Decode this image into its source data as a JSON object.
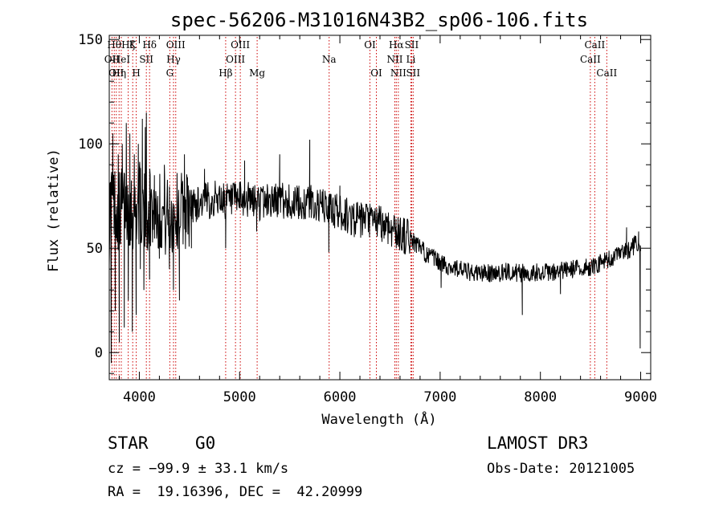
{
  "chart_data": {
    "type": "line",
    "title": "spec-56206-M31016N43B2_sp06-106.fits",
    "xlabel": "Wavelength (Å)",
    "ylabel": "Flux (relative)",
    "xlim": [
      3700,
      9100
    ],
    "ylim": [
      -13,
      152
    ],
    "xticks": [
      4000,
      5000,
      6000,
      7000,
      8000,
      9000
    ],
    "yticks": [
      0,
      50,
      100,
      150
    ],
    "line_color": "#000000",
    "marker_color": "#cc0000",
    "spectrum_anchors": [
      [
        3700,
        62
      ],
      [
        3720,
        75
      ],
      [
        3760,
        70
      ],
      [
        3800,
        68
      ],
      [
        3850,
        72
      ],
      [
        3900,
        70
      ],
      [
        3950,
        68
      ],
      [
        4000,
        72
      ],
      [
        4050,
        66
      ],
      [
        4100,
        70
      ],
      [
        4200,
        68
      ],
      [
        4300,
        64
      ],
      [
        4400,
        68
      ],
      [
        4500,
        70
      ],
      [
        4600,
        72
      ],
      [
        4700,
        73
      ],
      [
        4800,
        74
      ],
      [
        4900,
        72
      ],
      [
        5000,
        73
      ],
      [
        5100,
        73
      ],
      [
        5200,
        72
      ],
      [
        5300,
        73
      ],
      [
        5400,
        73
      ],
      [
        5500,
        72
      ],
      [
        5600,
        71
      ],
      [
        5700,
        72
      ],
      [
        5800,
        70
      ],
      [
        5900,
        69
      ],
      [
        6000,
        67
      ],
      [
        6100,
        65
      ],
      [
        6200,
        63
      ],
      [
        6300,
        63
      ],
      [
        6400,
        62
      ],
      [
        6500,
        60
      ],
      [
        6600,
        57
      ],
      [
        6700,
        55
      ],
      [
        6800,
        50
      ],
      [
        6900,
        46
      ],
      [
        7000,
        43
      ],
      [
        7100,
        41
      ],
      [
        7200,
        40
      ],
      [
        7300,
        38
      ],
      [
        7400,
        38
      ],
      [
        7500,
        38
      ],
      [
        7600,
        38
      ],
      [
        7700,
        39
      ],
      [
        7800,
        38
      ],
      [
        7900,
        38
      ],
      [
        8000,
        39
      ],
      [
        8100,
        38
      ],
      [
        8200,
        39
      ],
      [
        8300,
        40
      ],
      [
        8400,
        40
      ],
      [
        8500,
        41
      ],
      [
        8600,
        43
      ],
      [
        8700,
        45
      ],
      [
        8800,
        47
      ],
      [
        8900,
        50
      ],
      [
        8960,
        52
      ],
      [
        9000,
        48
      ]
    ],
    "spectrum_features": [
      {
        "x": 3720,
        "y": -5
      },
      {
        "x": 3735,
        "y": 105
      },
      {
        "x": 3760,
        "y": 20
      },
      {
        "x": 3790,
        "y": 95
      },
      {
        "x": 3800,
        "y": 5
      },
      {
        "x": 3830,
        "y": 100
      },
      {
        "x": 3850,
        "y": 12
      },
      {
        "x": 3870,
        "y": 110
      },
      {
        "x": 3890,
        "y": 25
      },
      {
        "x": 3905,
        "y": 105
      },
      {
        "x": 3930,
        "y": 10
      },
      {
        "x": 3950,
        "y": 95
      },
      {
        "x": 3968,
        "y": 18
      },
      {
        "x": 3990,
        "y": 100
      },
      {
        "x": 4010,
        "y": 40
      },
      {
        "x": 4030,
        "y": 112
      },
      {
        "x": 4045,
        "y": 30
      },
      {
        "x": 4060,
        "y": 108
      },
      {
        "x": 4070,
        "y": 115
      },
      {
        "x": 4102,
        "y": 35
      },
      {
        "x": 4150,
        "y": 85
      },
      {
        "x": 4200,
        "y": 45
      },
      {
        "x": 4250,
        "y": 90
      },
      {
        "x": 4300,
        "y": 40
      },
      {
        "x": 4340,
        "y": 30
      },
      {
        "x": 4400,
        "y": 25
      },
      {
        "x": 4450,
        "y": 95
      },
      {
        "x": 4520,
        "y": 50
      },
      {
        "x": 4650,
        "y": 88
      },
      {
        "x": 4861,
        "y": 50
      },
      {
        "x": 5050,
        "y": 92
      },
      {
        "x": 5170,
        "y": 58
      },
      {
        "x": 5400,
        "y": 95
      },
      {
        "x": 5700,
        "y": 102
      },
      {
        "x": 5890,
        "y": 48
      },
      {
        "x": 6000,
        "y": 80
      },
      {
        "x": 6563,
        "y": 50
      },
      {
        "x": 7010,
        "y": 31
      },
      {
        "x": 7820,
        "y": 18
      },
      {
        "x": 8200,
        "y": 28
      },
      {
        "x": 8860,
        "y": 60
      },
      {
        "x": 8980,
        "y": 58
      },
      {
        "x": 8995,
        "y": 2
      }
    ],
    "lines": [
      {
        "x": 3727,
        "label": "OII",
        "row": 2
      },
      {
        "x": 3750,
        "label": "Hθ",
        "row": 1
      },
      {
        "x": 3770,
        "label": "OII",
        "row": 3
      },
      {
        "x": 3798,
        "label": "Hη",
        "row": 3
      },
      {
        "x": 3820,
        "label": "HeI",
        "row": 2
      },
      {
        "x": 3889,
        "label": "Hζ",
        "row": 1
      },
      {
        "x": 3934,
        "label": "K",
        "row": 1
      },
      {
        "x": 3969,
        "label": "H",
        "row": 3
      },
      {
        "x": 4070,
        "label": "SII",
        "row": 2
      },
      {
        "x": 4102,
        "label": "Hδ",
        "row": 1
      },
      {
        "x": 4304,
        "label": "G",
        "row": 3
      },
      {
        "x": 4341,
        "label": "Hγ",
        "row": 2
      },
      {
        "x": 4363,
        "label": "OIII",
        "row": 1
      },
      {
        "x": 4861,
        "label": "Hβ",
        "row": 3
      },
      {
        "x": 4959,
        "label": "OIII",
        "row": 2
      },
      {
        "x": 5007,
        "label": "OIII",
        "row": 1
      },
      {
        "x": 5175,
        "label": "Mg",
        "row": 3
      },
      {
        "x": 5893,
        "label": "Na",
        "row": 2
      },
      {
        "x": 6300,
        "label": "OI",
        "row": 1
      },
      {
        "x": 6364,
        "label": "OI",
        "row": 3
      },
      {
        "x": 6548,
        "label": "NII",
        "row": 2
      },
      {
        "x": 6563,
        "label": "Hα",
        "row": 1
      },
      {
        "x": 6583,
        "label": "NII",
        "row": 3
      },
      {
        "x": 6708,
        "label": "Li",
        "row": 2
      },
      {
        "x": 6716,
        "label": "SII",
        "row": 1
      },
      {
        "x": 6731,
        "label": "SII",
        "row": 3
      },
      {
        "x": 8498,
        "label": "CaII",
        "row": 2
      },
      {
        "x": 8542,
        "label": "CaII",
        "row": 1
      },
      {
        "x": 8662,
        "label": "CaII",
        "row": 3
      }
    ]
  },
  "info": {
    "object_class": "STAR",
    "subclass": "G0",
    "survey": "LAMOST DR3",
    "redshift": "cz = −99.9 ± 33.1 km/s",
    "obs_date": "Obs-Date: 20121005",
    "coords": "RA =  19.16396, DEC =  42.20999"
  }
}
